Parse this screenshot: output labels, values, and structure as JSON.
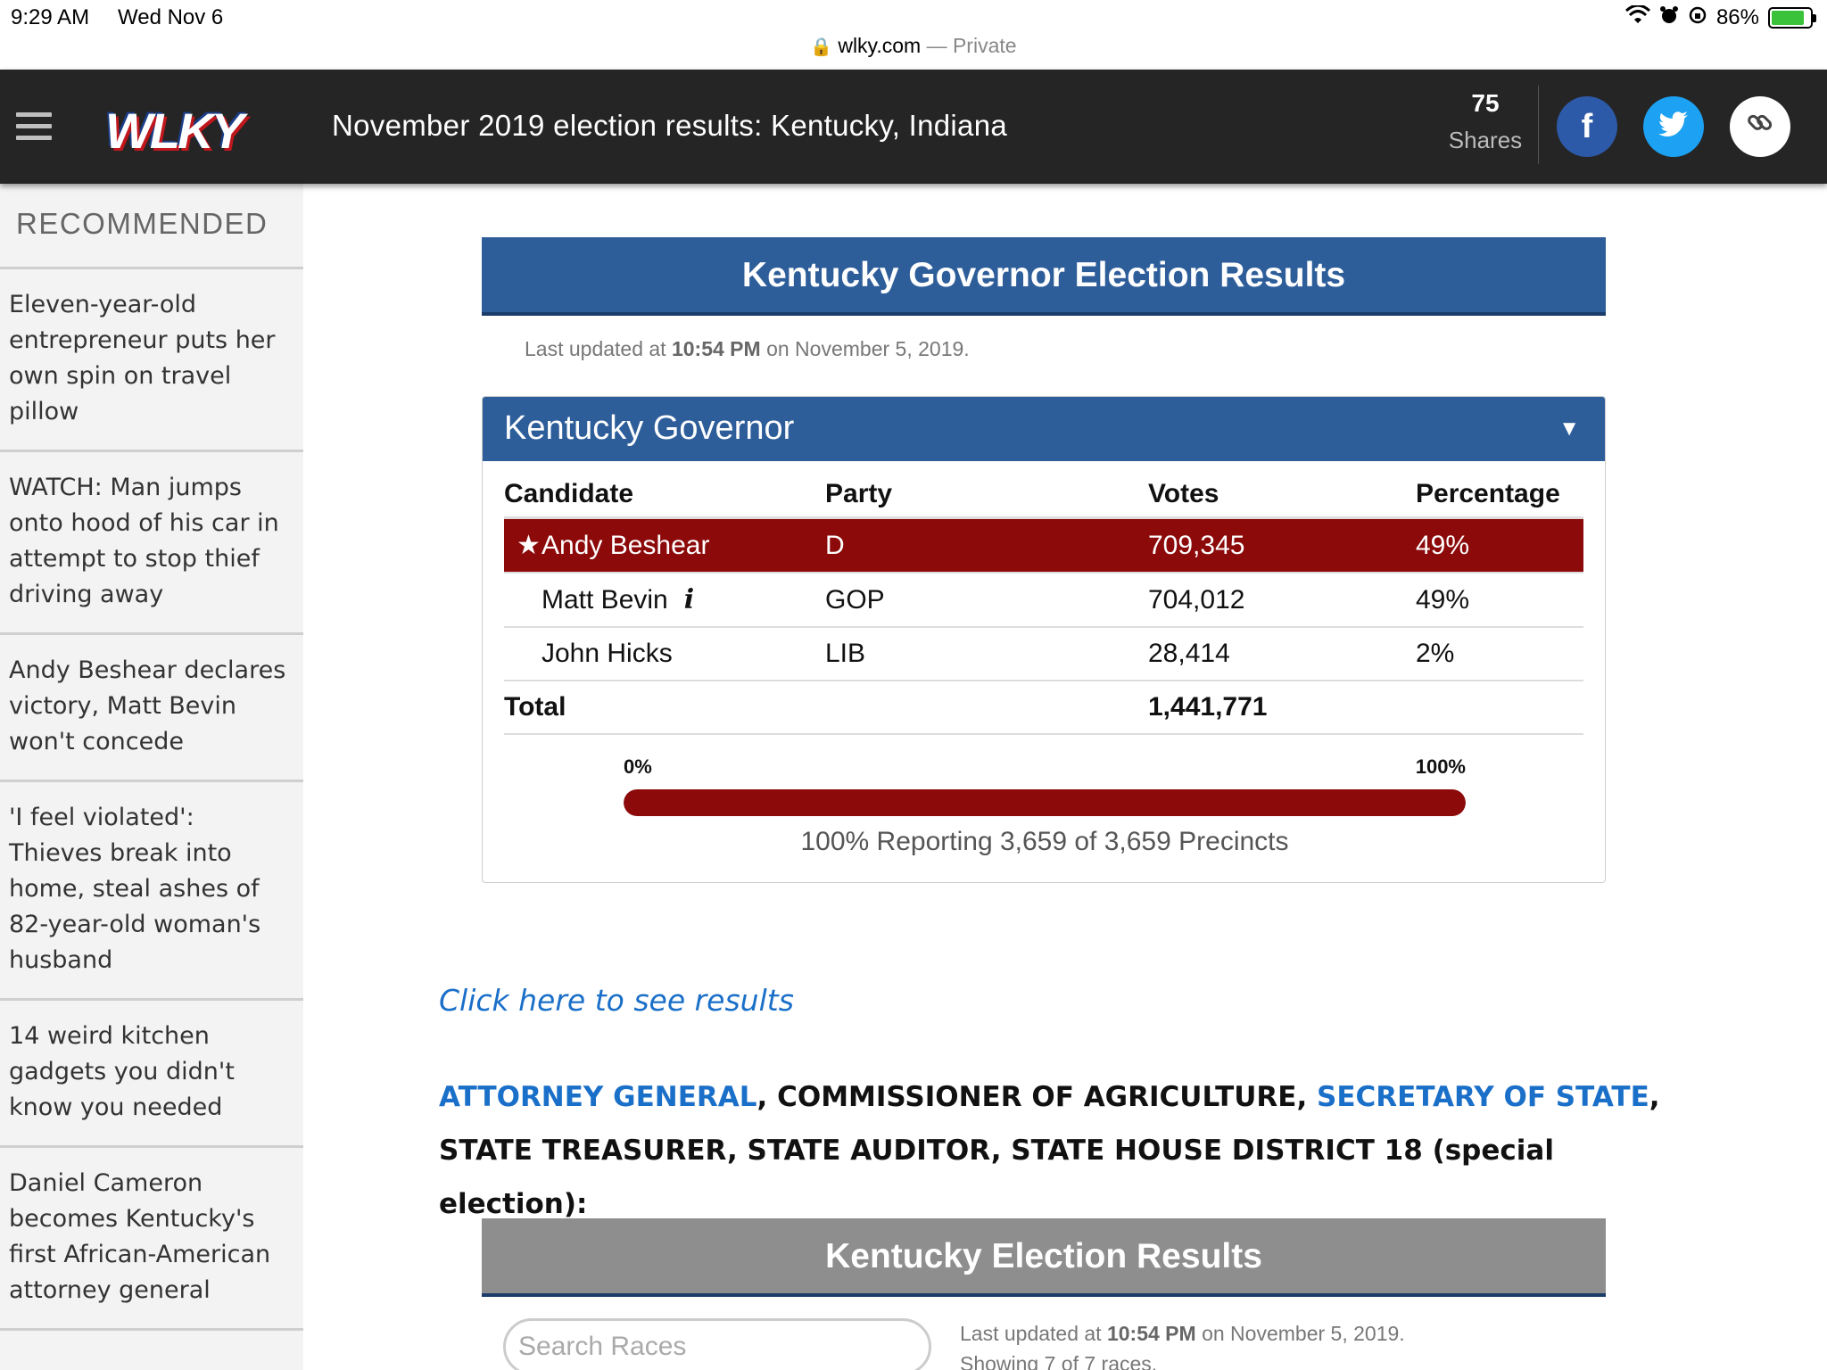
{
  "status": {
    "time": "9:29 AM",
    "date": "Wed Nov 6",
    "battery": "86%",
    "battery_level": 0.86
  },
  "address": {
    "domain": "wlky.com",
    "separator": " — ",
    "mode": "Private"
  },
  "header": {
    "logo_text": "WLKY",
    "headline": "November 2019 election results: Kentucky, Indiana",
    "shares_count": "75",
    "shares_label": "Shares"
  },
  "sidebar": {
    "title": "RECOMMENDED",
    "items": [
      {
        "label": "Eleven-year-old entrepreneur puts her own spin on travel pillow"
      },
      {
        "label": "WATCH: Man jumps onto hood of his car in attempt to stop thief driving away"
      },
      {
        "label": "Andy Beshear declares victory, Matt Bevin won't concede"
      },
      {
        "label": "'I feel violated': Thieves break into home, steal ashes of 82-year-old woman's husband"
      },
      {
        "label": "14 weird kitchen gadgets you didn't know you needed"
      },
      {
        "label": "Daniel Cameron becomes Kentucky's first African-American attorney general"
      }
    ]
  },
  "results": {
    "banner": "Kentucky Governor Election Results",
    "updated_prefix": "Last updated at ",
    "updated_time": "10:54 PM",
    "updated_suffix": " on November 5, 2019.",
    "race_title": "Kentucky Governor",
    "caret": "▼",
    "columns": {
      "candidate": "Candidate",
      "party": "Party",
      "votes": "Votes",
      "percentage": "Percentage"
    },
    "rows": [
      {
        "candidate": "Andy Beshear",
        "party": "D",
        "votes": "709,345",
        "percentage": "49%",
        "winner": true
      },
      {
        "candidate": "Matt Bevin",
        "party": "GOP",
        "votes": "704,012",
        "percentage": "49%",
        "info": "i"
      },
      {
        "candidate": "John Hicks",
        "party": "LIB",
        "votes": "28,414",
        "percentage": "2%"
      }
    ],
    "total_label": "Total",
    "total_votes": "1,441,771",
    "progress_min_label": "0%",
    "progress_max_label": "100%",
    "progress_fraction": 1.0,
    "reporting": "100% Reporting 3,659 of 3,659 Precincts"
  },
  "click_link": "Click here to see results",
  "races_list": {
    "link1": "ATTORNEY GENERAL",
    "text1": ", COMMISSIONER OF AGRICULTURE, ",
    "link2": "SECRETARY OF STATE",
    "text2": ", STATE TREASURER, STATE AUDITOR, STATE HOUSE DISTRICT 18 (special election):"
  },
  "ky_results": {
    "banner": "Kentucky Election Results",
    "search_placeholder": "Search Races",
    "updated_prefix": "Last updated at ",
    "updated_time": "10:54 PM",
    "updated_suffix": " on November 5, 2019.",
    "showing": "Showing 7 of 7 races."
  },
  "colors": {
    "header_bg": "#252525",
    "blue_banner": "#2e5e9a",
    "winner_red": "#8c0a0a",
    "link_blue": "#1a6fc8",
    "facebook": "#2d5aa8",
    "twitter": "#1da1f2"
  },
  "icons": [
    "wifi-icon",
    "alarm-icon",
    "orientation-lock-icon",
    "battery-icon",
    "lock-icon",
    "hamburger-menu-icon",
    "facebook-icon",
    "twitter-icon",
    "link-icon",
    "star-icon",
    "info-icon",
    "dropdown-caret-icon"
  ]
}
